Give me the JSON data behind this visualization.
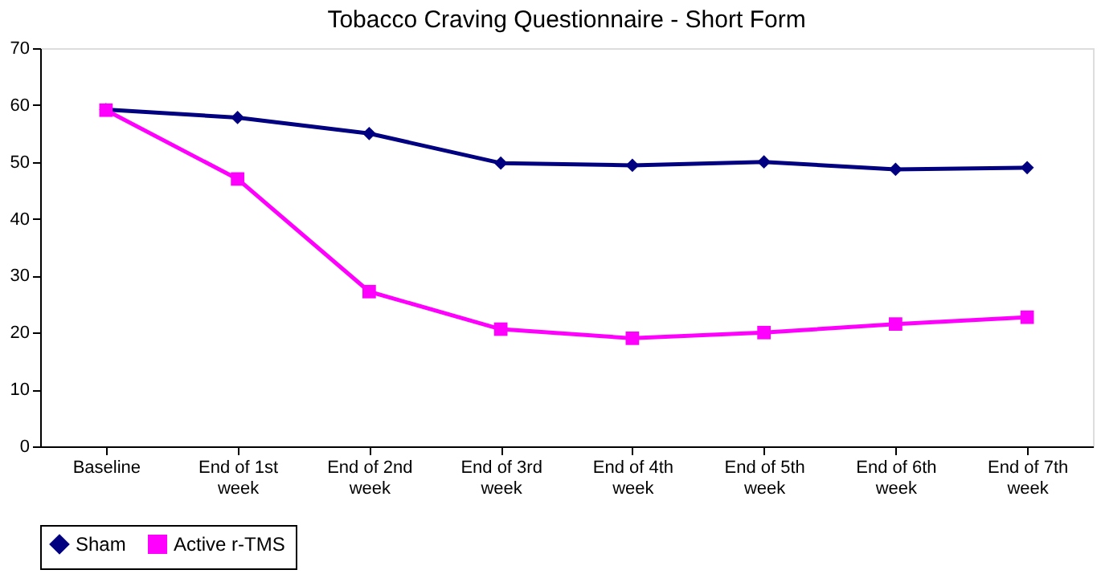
{
  "chart_data": {
    "type": "line",
    "title": "Tobacco Craving Questionnaire - Short Form",
    "categories": [
      "Baseline",
      "End of 1st week",
      "End of 2nd week",
      "End of 3rd week",
      "End of 4th week",
      "End of 5th week",
      "End of 6th week",
      "End of 7th week"
    ],
    "series": [
      {
        "name": "Sham",
        "color": "#000080",
        "marker": "diamond",
        "values": [
          59.2,
          57.8,
          55,
          49.8,
          49.4,
          50,
          48.7,
          49
        ]
      },
      {
        "name": "Active r-TMS",
        "color": "#ff00ff",
        "marker": "square",
        "values": [
          59.1,
          47,
          27.2,
          20.6,
          19,
          20,
          21.5,
          22.7
        ]
      }
    ],
    "ylim": [
      0,
      70
    ],
    "yticks": [
      0,
      10,
      20,
      30,
      40,
      50,
      60,
      70
    ],
    "grid": false,
    "legend": "bottom",
    "line_style": "solid"
  }
}
